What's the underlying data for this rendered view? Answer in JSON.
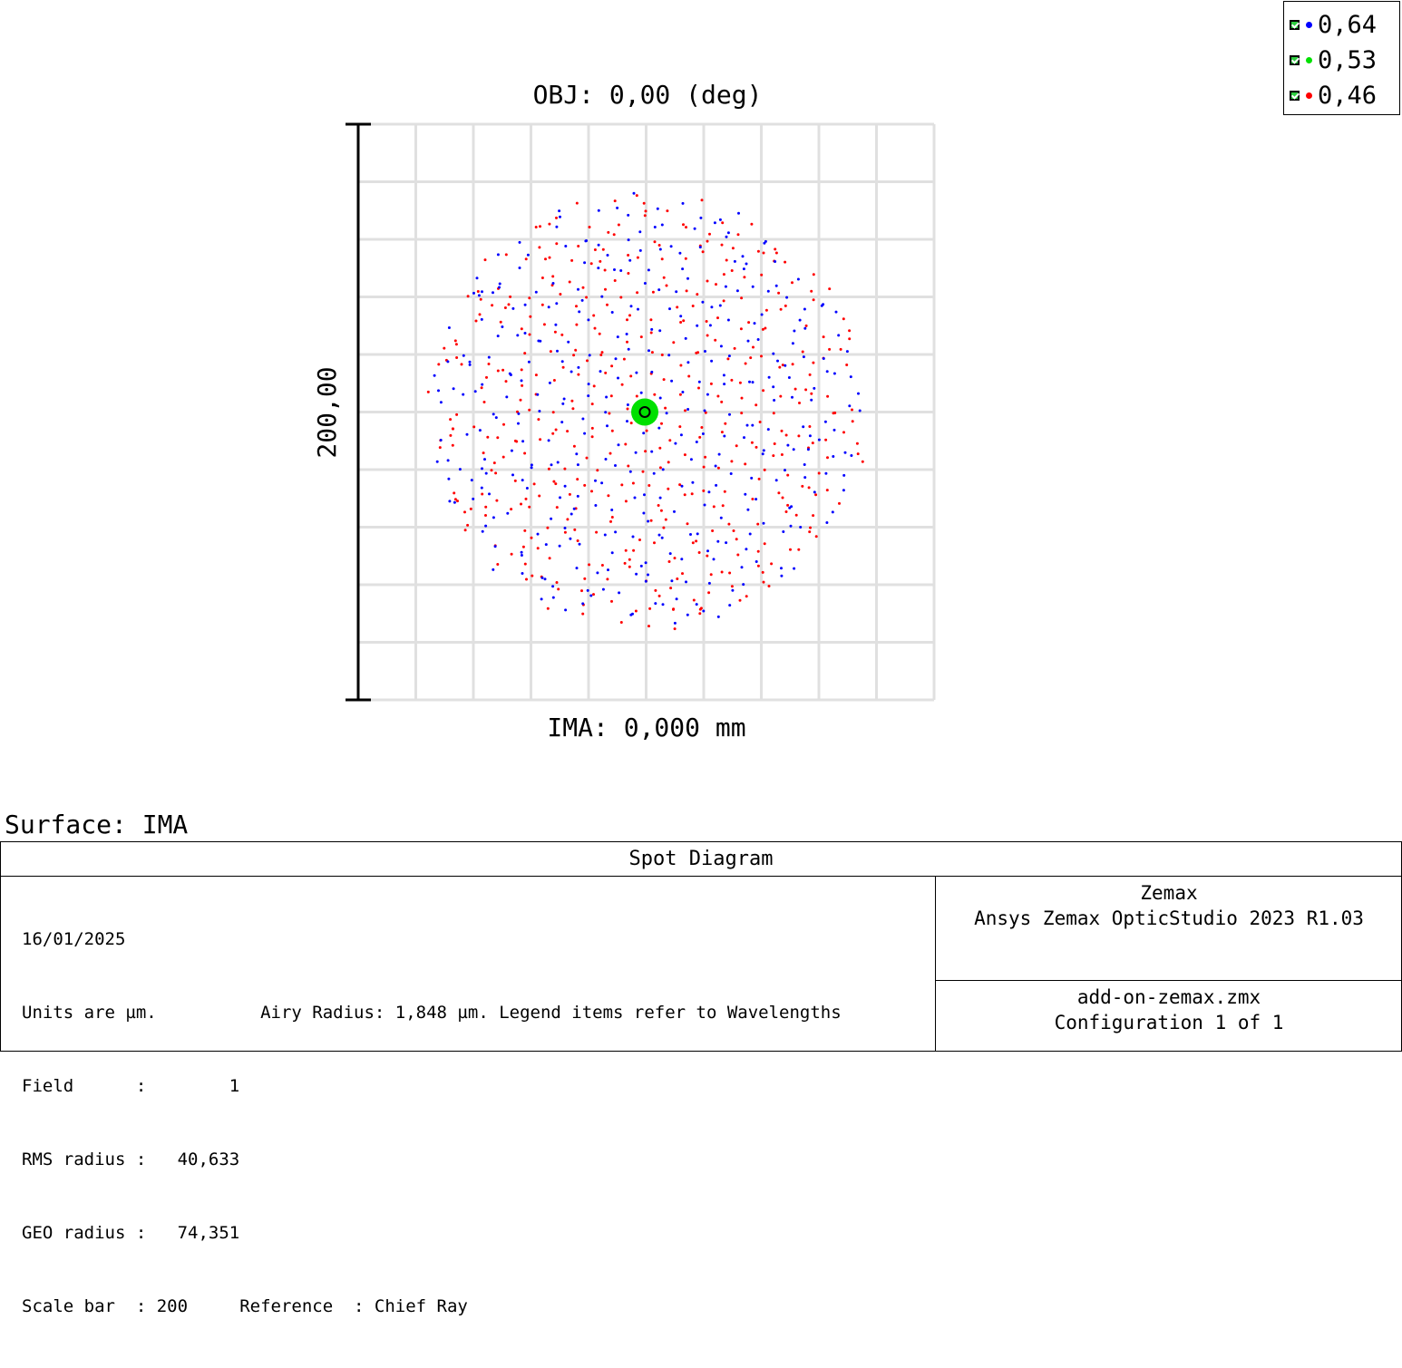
{
  "chart_data": {
    "type": "scatter",
    "title": "OBJ: 0,00 (deg)",
    "xlabel": "IMA: 0,000 mm",
    "scale_bar_label": "200,00",
    "units": "µm",
    "xlim": [
      -100,
      100
    ],
    "ylim": [
      -100,
      100
    ],
    "grid": true,
    "legend_position": "top-right",
    "series": [
      {
        "name": "0,64",
        "color": "#0000ff",
        "rms_radius": 40.633,
        "geo_radius": 74.351
      },
      {
        "name": "0,53",
        "color": "#00e000",
        "rms_radius": 0.5,
        "geo_radius": 3.5
      },
      {
        "name": "0,46",
        "color": "#ff0000",
        "rms_radius": 50,
        "geo_radius": 74.351
      }
    ]
  },
  "legend": {
    "items": [
      {
        "label": "0,64",
        "color": "#0000ff"
      },
      {
        "label": "0,53",
        "color": "#00e000"
      },
      {
        "label": "0,46",
        "color": "#ff0000"
      }
    ]
  },
  "surface_label": "Surface: IMA",
  "info": {
    "title": "Spot Diagram",
    "date": "16/01/2025",
    "units_line": "Units are µm.          Airy Radius: 1,848 µm. Legend items refer to Wavelengths",
    "field_line": "Field      :        1",
    "rms_line": "RMS radius :   40,633",
    "geo_line": "GEO radius :   74,351",
    "scale_line": "Scale bar  : 200     Reference  : Chief Ray",
    "company": "Zemax",
    "product": "Ansys Zemax OpticStudio 2023 R1.03",
    "filename": "add-on-zemax.zmx",
    "configuration": "Configuration 1 of 1"
  }
}
